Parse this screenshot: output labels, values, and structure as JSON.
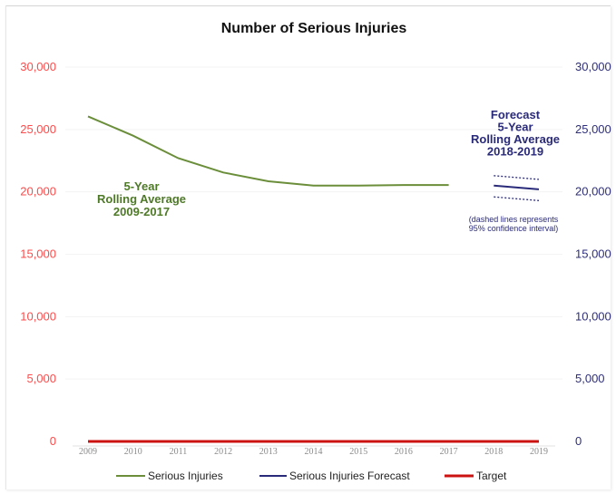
{
  "chart_data": {
    "type": "line",
    "title": "Number of Serious Injuries",
    "xlabel": "",
    "ylabel": "",
    "x": [
      "2009",
      "2010",
      "2011",
      "2012",
      "2013",
      "2014",
      "2015",
      "2016",
      "2017",
      "2018",
      "2019"
    ],
    "ylim": [
      0,
      30000
    ],
    "y_ticks_left": [
      "0",
      "5,000",
      "10,000",
      "15,000",
      "20,000",
      "25,000",
      "30,000"
    ],
    "y_ticks_right": [
      "0",
      "5,000",
      "10,000",
      "15,000",
      "20,000",
      "25,000",
      "30,000"
    ],
    "grid": false,
    "legend_position": "bottom",
    "series": [
      {
        "name": "Serious Injuries",
        "color": "#6b8e3a",
        "values": [
          26050,
          24500,
          22700,
          21550,
          20850,
          20500,
          20500,
          20550,
          20550,
          null,
          null
        ]
      },
      {
        "name": "Serious Injuries Forecast",
        "color": "#2a2a7a",
        "values": [
          null,
          null,
          null,
          null,
          null,
          null,
          null,
          null,
          null,
          20500,
          20200
        ],
        "upper": [
          null,
          null,
          null,
          null,
          null,
          null,
          null,
          null,
          null,
          21300,
          21000
        ],
        "lower": [
          null,
          null,
          null,
          null,
          null,
          null,
          null,
          null,
          null,
          19600,
          19300
        ]
      },
      {
        "name": "Target",
        "color": "#cc1111",
        "values": [
          0,
          0,
          0,
          0,
          0,
          0,
          0,
          0,
          0,
          0,
          0
        ]
      }
    ],
    "annotations": {
      "rolling": [
        "5-Year",
        "Rolling Average",
        "2009-2017"
      ],
      "forecast": [
        "Forecast",
        "5-Year",
        "Rolling Average",
        "2018-2019"
      ],
      "note": [
        "(dashed lines represents",
        "95% confidence interval)"
      ]
    }
  }
}
